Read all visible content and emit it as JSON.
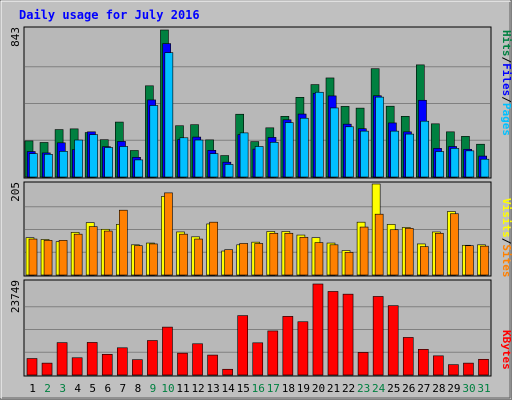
{
  "title": "Daily usage for July 2016",
  "colors": {
    "background": "#c0c0c0",
    "panel": "#b8b8b8",
    "title": "#0000ff",
    "hits": "#008040",
    "files": "#0000ff",
    "pages": "#00c0ff",
    "visits": "#ffff00",
    "sites": "#ff8000",
    "kbytes": "#ff0000",
    "weekend": "#008040",
    "weekday": "#000000"
  },
  "labels": {
    "pages": "Pages",
    "files": "Files",
    "hits": "Hits",
    "sites": "Sites",
    "visits": "Visits",
    "kbytes": "KBytes",
    "sep": "/"
  },
  "chart_data": [
    {
      "type": "bar",
      "name": "hits-files-pages",
      "categories": [
        "1",
        "2",
        "3",
        "4",
        "5",
        "6",
        "7",
        "8",
        "9",
        "10",
        "11",
        "12",
        "13",
        "14",
        "15",
        "16",
        "17",
        "18",
        "19",
        "20",
        "21",
        "22",
        "23",
        "24",
        "25",
        "26",
        "27",
        "28",
        "29",
        "30",
        "31"
      ],
      "weekend_days": [
        2,
        3,
        9,
        10,
        16,
        17,
        23,
        24,
        30,
        31
      ],
      "ymax_label": "843",
      "ylim": [
        0,
        843
      ],
      "series": [
        {
          "name": "Hits",
          "values": [
            207,
            198,
            272,
            276,
            255,
            214,
            315,
            152,
            523,
            843,
            294,
            300,
            213,
            123,
            360,
            203,
            282,
            348,
            457,
            530,
            568,
            405,
            395,
            621,
            406,
            348,
            643,
            305,
            259,
            233,
            188
          ]
        },
        {
          "name": "Files",
          "values": [
            146,
            138,
            196,
            157,
            259,
            174,
            204,
            113,
            442,
            765,
            215,
            229,
            153,
            85,
            243,
            160,
            227,
            328,
            361,
            480,
            465,
            303,
            277,
            466,
            310,
            259,
            440,
            164,
            175,
            159,
            120
          ]
        },
        {
          "name": "Pages",
          "values": [
            134,
            130,
            147,
            212,
            243,
            169,
            175,
            98,
            410,
            713,
            225,
            212,
            134,
            72,
            253,
            175,
            199,
            312,
            337,
            486,
            396,
            288,
            263,
            458,
            263,
            246,
            320,
            146,
            164,
            150,
            102
          ]
        }
      ]
    },
    {
      "type": "bar",
      "name": "visits-sites",
      "categories": [
        "1",
        "2",
        "3",
        "4",
        "5",
        "6",
        "7",
        "8",
        "9",
        "10",
        "11",
        "12",
        "13",
        "14",
        "15",
        "16",
        "17",
        "18",
        "19",
        "20",
        "21",
        "22",
        "23",
        "24",
        "25",
        "26",
        "27",
        "28",
        "29",
        "30",
        "31"
      ],
      "ymax_label": "205",
      "ylim": [
        0,
        205
      ],
      "series": [
        {
          "name": "Visits",
          "values": [
            84,
            80,
            75,
            96,
            118,
            103,
            114,
            68,
            72,
            177,
            97,
            86,
            115,
            54,
            68,
            74,
            98,
            98,
            90,
            84,
            72,
            55,
            119,
            205,
            114,
            107,
            70,
            97,
            143,
            67,
            68
          ]
        },
        {
          "name": "Sites",
          "values": [
            81,
            78,
            78,
            92,
            109,
            99,
            146,
            66,
            70,
            185,
            92,
            81,
            119,
            57,
            71,
            71,
            94,
            94,
            85,
            73,
            68,
            51,
            108,
            137,
            102,
            105,
            64,
            94,
            138,
            66,
            65
          ]
        }
      ]
    },
    {
      "type": "bar",
      "name": "kbytes",
      "categories": [
        "1",
        "2",
        "3",
        "4",
        "5",
        "6",
        "7",
        "8",
        "9",
        "10",
        "11",
        "12",
        "13",
        "14",
        "15",
        "16",
        "17",
        "18",
        "19",
        "20",
        "21",
        "22",
        "23",
        "24",
        "25",
        "26",
        "27",
        "28",
        "29",
        "30",
        "31"
      ],
      "ymax_label": "23749",
      "ylim": [
        0,
        23749
      ],
      "series": [
        {
          "name": "KBytes",
          "values": [
            4300,
            3100,
            8450,
            4500,
            8500,
            5400,
            7100,
            4000,
            9000,
            12500,
            5700,
            8150,
            5200,
            1500,
            15500,
            8400,
            11500,
            15300,
            13900,
            23749,
            21800,
            21100,
            5900,
            20500,
            18100,
            9800,
            6700,
            5000,
            2700,
            3100,
            4100
          ]
        }
      ]
    }
  ]
}
